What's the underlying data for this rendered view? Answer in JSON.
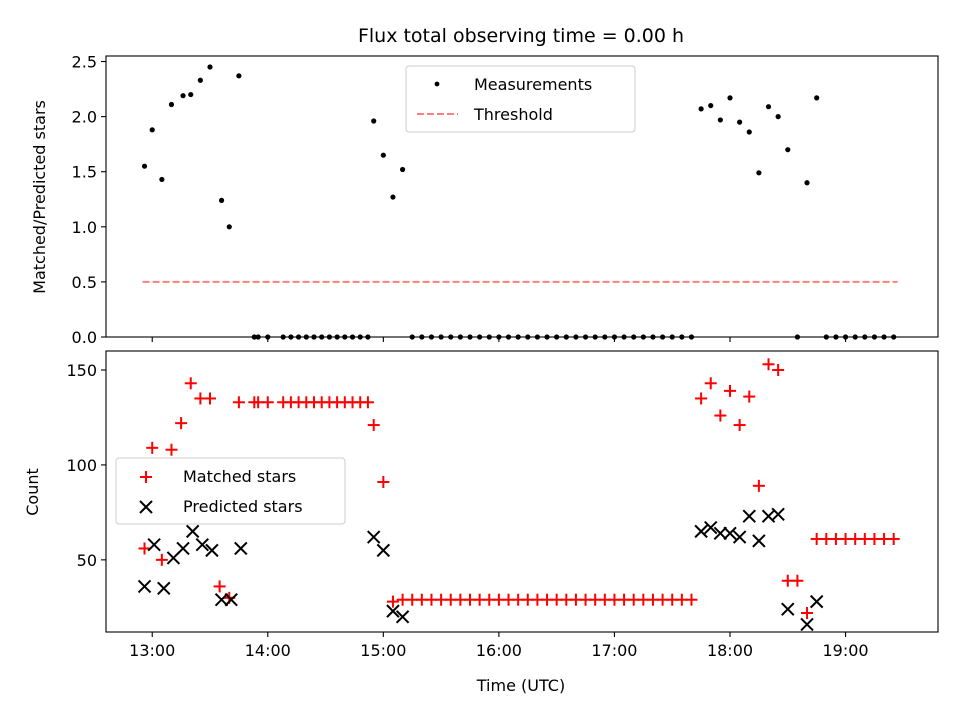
{
  "chart_data": [
    {
      "type": "scatter",
      "title": "Flux total observing time = 0.00 h",
      "xlabel": "",
      "ylabel": "Matched/Predicted stars",
      "xlim": [
        "12:36",
        "19:48"
      ],
      "ylim": [
        0,
        2.55
      ],
      "x_ticks": [
        "13:00",
        "14:00",
        "15:00",
        "16:00",
        "17:00",
        "18:00",
        "19:00"
      ],
      "y_ticks": [
        "0.0",
        "0.5",
        "1.0",
        "1.5",
        "2.0",
        "2.5"
      ],
      "grid": false,
      "legend_placement": "upper-center",
      "colors": {
        "measurements": "#000000",
        "threshold": "#ff7f7f"
      },
      "series": [
        {
          "name": "Measurements",
          "marker": "dot",
          "points": [
            [
              "12:56",
              1.55
            ],
            [
              "13:00",
              1.88
            ],
            [
              "13:05",
              1.43
            ],
            [
              "13:10",
              2.11
            ],
            [
              "13:16",
              2.19
            ],
            [
              "13:20",
              2.2
            ],
            [
              "13:25",
              2.33
            ],
            [
              "13:30",
              2.45
            ],
            [
              "13:36",
              1.24
            ],
            [
              "13:40",
              1.0
            ],
            [
              "13:45",
              2.37
            ],
            [
              "13:53",
              0
            ],
            [
              "13:55",
              0
            ],
            [
              "14:00",
              0
            ],
            [
              "14:08",
              0
            ],
            [
              "14:12",
              0
            ],
            [
              "14:16",
              0
            ],
            [
              "14:20",
              0
            ],
            [
              "14:24",
              0
            ],
            [
              "14:28",
              0
            ],
            [
              "14:32",
              0
            ],
            [
              "14:36",
              0
            ],
            [
              "14:40",
              0
            ],
            [
              "14:44",
              0
            ],
            [
              "14:48",
              0
            ],
            [
              "14:52",
              0
            ],
            [
              "14:55",
              1.96
            ],
            [
              "15:00",
              1.65
            ],
            [
              "15:05",
              1.27
            ],
            [
              "15:10",
              1.52
            ],
            [
              "15:15",
              0
            ],
            [
              "15:20",
              0
            ],
            [
              "15:25",
              0
            ],
            [
              "15:30",
              0
            ],
            [
              "15:35",
              0
            ],
            [
              "15:40",
              0
            ],
            [
              "15:45",
              0
            ],
            [
              "15:50",
              0
            ],
            [
              "15:55",
              0
            ],
            [
              "16:00",
              0
            ],
            [
              "16:05",
              0
            ],
            [
              "16:10",
              0
            ],
            [
              "16:15",
              0
            ],
            [
              "16:20",
              0
            ],
            [
              "16:25",
              0
            ],
            [
              "16:30",
              0
            ],
            [
              "16:35",
              0
            ],
            [
              "16:40",
              0
            ],
            [
              "16:45",
              0
            ],
            [
              "16:50",
              0
            ],
            [
              "16:55",
              0
            ],
            [
              "17:00",
              0
            ],
            [
              "17:05",
              0
            ],
            [
              "17:10",
              0
            ],
            [
              "17:15",
              0
            ],
            [
              "17:20",
              0
            ],
            [
              "17:25",
              0
            ],
            [
              "17:30",
              0
            ],
            [
              "17:35",
              0
            ],
            [
              "17:40",
              0
            ],
            [
              "17:45",
              2.07
            ],
            [
              "17:50",
              2.1
            ],
            [
              "17:55",
              1.97
            ],
            [
              "18:00",
              2.17
            ],
            [
              "18:05",
              1.95
            ],
            [
              "18:10",
              1.86
            ],
            [
              "18:15",
              1.49
            ],
            [
              "18:20",
              2.09
            ],
            [
              "18:25",
              2.0
            ],
            [
              "18:30",
              1.7
            ],
            [
              "18:35",
              0
            ],
            [
              "18:40",
              1.4
            ],
            [
              "18:45",
              2.17
            ],
            [
              "18:50",
              0
            ],
            [
              "18:55",
              0
            ],
            [
              "19:00",
              0
            ],
            [
              "19:05",
              0
            ],
            [
              "19:10",
              0
            ],
            [
              "19:15",
              0
            ],
            [
              "19:20",
              0
            ],
            [
              "19:25",
              0
            ]
          ]
        },
        {
          "name": "Threshold",
          "style": "dashed-line",
          "points": [
            [
              "12:55",
              0.5
            ],
            [
              "19:27",
              0.5
            ]
          ]
        }
      ]
    },
    {
      "type": "scatter",
      "title": "",
      "xlabel": "Time (UTC)",
      "ylabel": "Count",
      "xlim": [
        "12:36",
        "19:48"
      ],
      "ylim": [
        12,
        160
      ],
      "x_ticks": [
        "13:00",
        "14:00",
        "15:00",
        "16:00",
        "17:00",
        "18:00",
        "19:00"
      ],
      "y_ticks": [
        "50",
        "100",
        "150"
      ],
      "grid": false,
      "legend_placement": "center-left",
      "colors": {
        "matched": "#ff0000",
        "predicted": "#000000"
      },
      "series": [
        {
          "name": "Matched stars",
          "marker": "plus",
          "points": [
            [
              "12:56",
              56
            ],
            [
              "13:00",
              109
            ],
            [
              "13:05",
              50
            ],
            [
              "13:10",
              108
            ],
            [
              "13:15",
              122
            ],
            [
              "13:20",
              143
            ],
            [
              "13:25",
              135
            ],
            [
              "13:30",
              135
            ],
            [
              "13:35",
              36
            ],
            [
              "13:40",
              30
            ],
            [
              "13:45",
              133
            ],
            [
              "13:53",
              133
            ],
            [
              "13:55",
              133
            ],
            [
              "14:00",
              133
            ],
            [
              "14:08",
              133
            ],
            [
              "14:12",
              133
            ],
            [
              "14:16",
              133
            ],
            [
              "14:20",
              133
            ],
            [
              "14:24",
              133
            ],
            [
              "14:28",
              133
            ],
            [
              "14:32",
              133
            ],
            [
              "14:36",
              133
            ],
            [
              "14:40",
              133
            ],
            [
              "14:44",
              133
            ],
            [
              "14:48",
              133
            ],
            [
              "14:52",
              133
            ],
            [
              "14:55",
              121
            ],
            [
              "15:00",
              91
            ],
            [
              "15:05",
              28
            ],
            [
              "15:10",
              29
            ],
            [
              "15:15",
              29
            ],
            [
              "15:20",
              29
            ],
            [
              "15:25",
              29
            ],
            [
              "15:30",
              29
            ],
            [
              "15:35",
              29
            ],
            [
              "15:40",
              29
            ],
            [
              "15:45",
              29
            ],
            [
              "15:50",
              29
            ],
            [
              "15:55",
              29
            ],
            [
              "16:00",
              29
            ],
            [
              "16:05",
              29
            ],
            [
              "16:10",
              29
            ],
            [
              "16:15",
              29
            ],
            [
              "16:20",
              29
            ],
            [
              "16:25",
              29
            ],
            [
              "16:30",
              29
            ],
            [
              "16:35",
              29
            ],
            [
              "16:40",
              29
            ],
            [
              "16:45",
              29
            ],
            [
              "16:50",
              29
            ],
            [
              "16:55",
              29
            ],
            [
              "17:00",
              29
            ],
            [
              "17:05",
              29
            ],
            [
              "17:10",
              29
            ],
            [
              "17:15",
              29
            ],
            [
              "17:20",
              29
            ],
            [
              "17:25",
              29
            ],
            [
              "17:30",
              29
            ],
            [
              "17:35",
              29
            ],
            [
              "17:40",
              29
            ],
            [
              "17:45",
              135
            ],
            [
              "17:50",
              143
            ],
            [
              "17:55",
              126
            ],
            [
              "18:00",
              139
            ],
            [
              "18:05",
              121
            ],
            [
              "18:10",
              136
            ],
            [
              "18:15",
              89
            ],
            [
              "18:20",
              153
            ],
            [
              "18:25",
              150
            ],
            [
              "18:30",
              39
            ],
            [
              "18:35",
              39
            ],
            [
              "18:40",
              22
            ],
            [
              "18:45",
              61
            ],
            [
              "18:50",
              61
            ],
            [
              "18:55",
              61
            ],
            [
              "19:00",
              61
            ],
            [
              "19:05",
              61
            ],
            [
              "19:10",
              61
            ],
            [
              "19:15",
              61
            ],
            [
              "19:20",
              61
            ],
            [
              "19:25",
              61
            ]
          ]
        },
        {
          "name": "Predicted stars",
          "marker": "x",
          "points": [
            [
              "12:56",
              36
            ],
            [
              "13:01",
              58
            ],
            [
              "13:06",
              35
            ],
            [
              "13:11",
              51
            ],
            [
              "13:16",
              56
            ],
            [
              "13:21",
              65
            ],
            [
              "13:26",
              58
            ],
            [
              "13:31",
              55
            ],
            [
              "13:36",
              29
            ],
            [
              "13:41",
              29
            ],
            [
              "13:46",
              56
            ],
            [
              "14:55",
              62
            ],
            [
              "15:00",
              55
            ],
            [
              "15:05",
              23
            ],
            [
              "15:10",
              20
            ],
            [
              "17:45",
              65
            ],
            [
              "17:50",
              67
            ],
            [
              "17:55",
              64
            ],
            [
              "18:00",
              64
            ],
            [
              "18:05",
              62
            ],
            [
              "18:10",
              73
            ],
            [
              "18:15",
              60
            ],
            [
              "18:20",
              73
            ],
            [
              "18:25",
              74
            ],
            [
              "18:30",
              24
            ],
            [
              "18:40",
              16
            ],
            [
              "18:45",
              28
            ]
          ]
        }
      ]
    }
  ]
}
